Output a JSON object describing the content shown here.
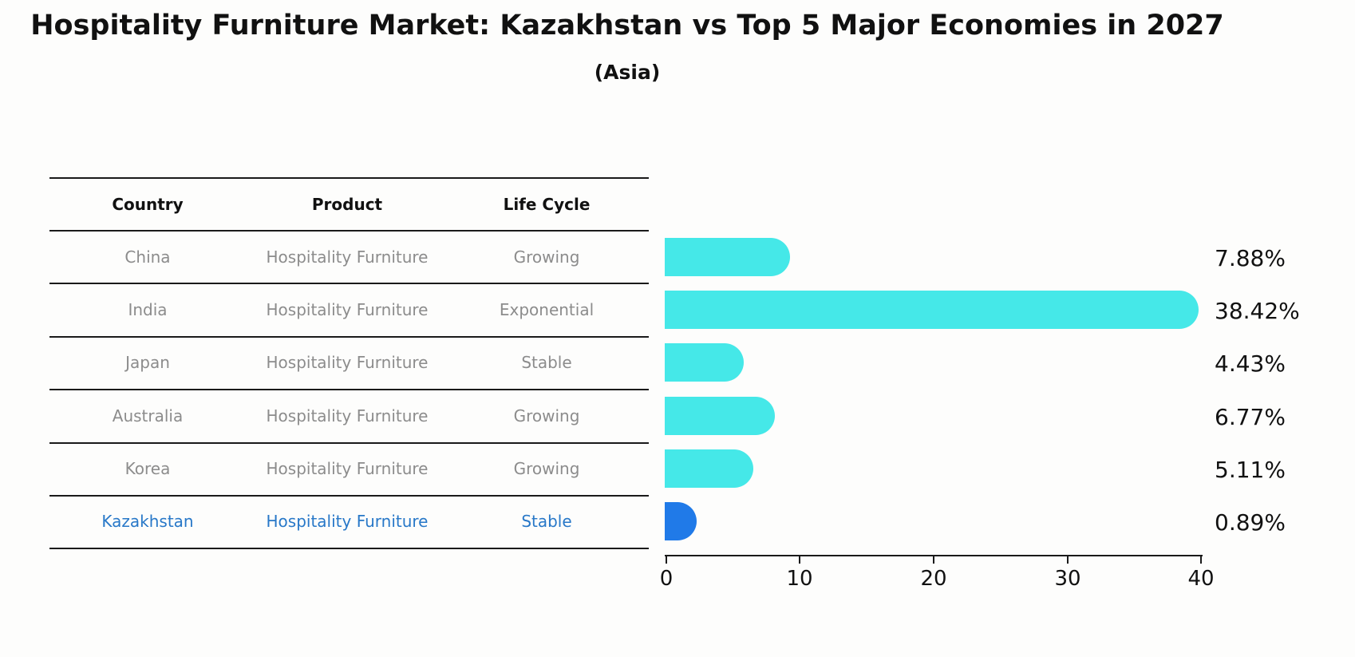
{
  "title": "Hospitality Furniture Market: Kazakhstan vs Top 5 Major Economies in 2027",
  "subtitle": "(Asia)",
  "table": {
    "headers": [
      "Country",
      "Product",
      "Life Cycle"
    ],
    "rows": [
      {
        "country": "China",
        "product": "Hospitality Furniture",
        "life_cycle": "Growing"
      },
      {
        "country": "India",
        "product": "Hospitality Furniture",
        "life_cycle": "Exponential"
      },
      {
        "country": "Japan",
        "product": "Hospitality Furniture",
        "life_cycle": "Stable"
      },
      {
        "country": "Australia",
        "product": "Hospitality Furniture",
        "life_cycle": "Growing"
      },
      {
        "country": "Korea",
        "product": "Hospitality Furniture",
        "life_cycle": "Growing"
      },
      {
        "country": "Kazakhstan",
        "product": "Hospitality Furniture",
        "life_cycle": "Stable"
      }
    ],
    "highlight_row": "Kazakhstan"
  },
  "chart_data": {
    "type": "bar",
    "orientation": "horizontal",
    "title": "Hospitality Furniture Market: Kazakhstan vs Top 5 Major Economies in 2027 (Asia)",
    "categories": [
      "China",
      "India",
      "Japan",
      "Australia",
      "Korea",
      "Kazakhstan"
    ],
    "values": [
      7.88,
      38.42,
      4.43,
      6.77,
      5.11,
      0.89
    ],
    "labels": [
      "7.88%",
      "38.42%",
      "4.43%",
      "6.77%",
      "5.11%",
      "0.89%"
    ],
    "xlim": [
      0,
      40
    ],
    "x_ticks": [
      "0",
      "10",
      "20",
      "30",
      "40"
    ],
    "grid": false,
    "legend": false,
    "bar_color": "#45e8e8",
    "highlight_color": "#207ae8",
    "highlight_index": 5,
    "highlight_text_color": "#2878c8"
  }
}
